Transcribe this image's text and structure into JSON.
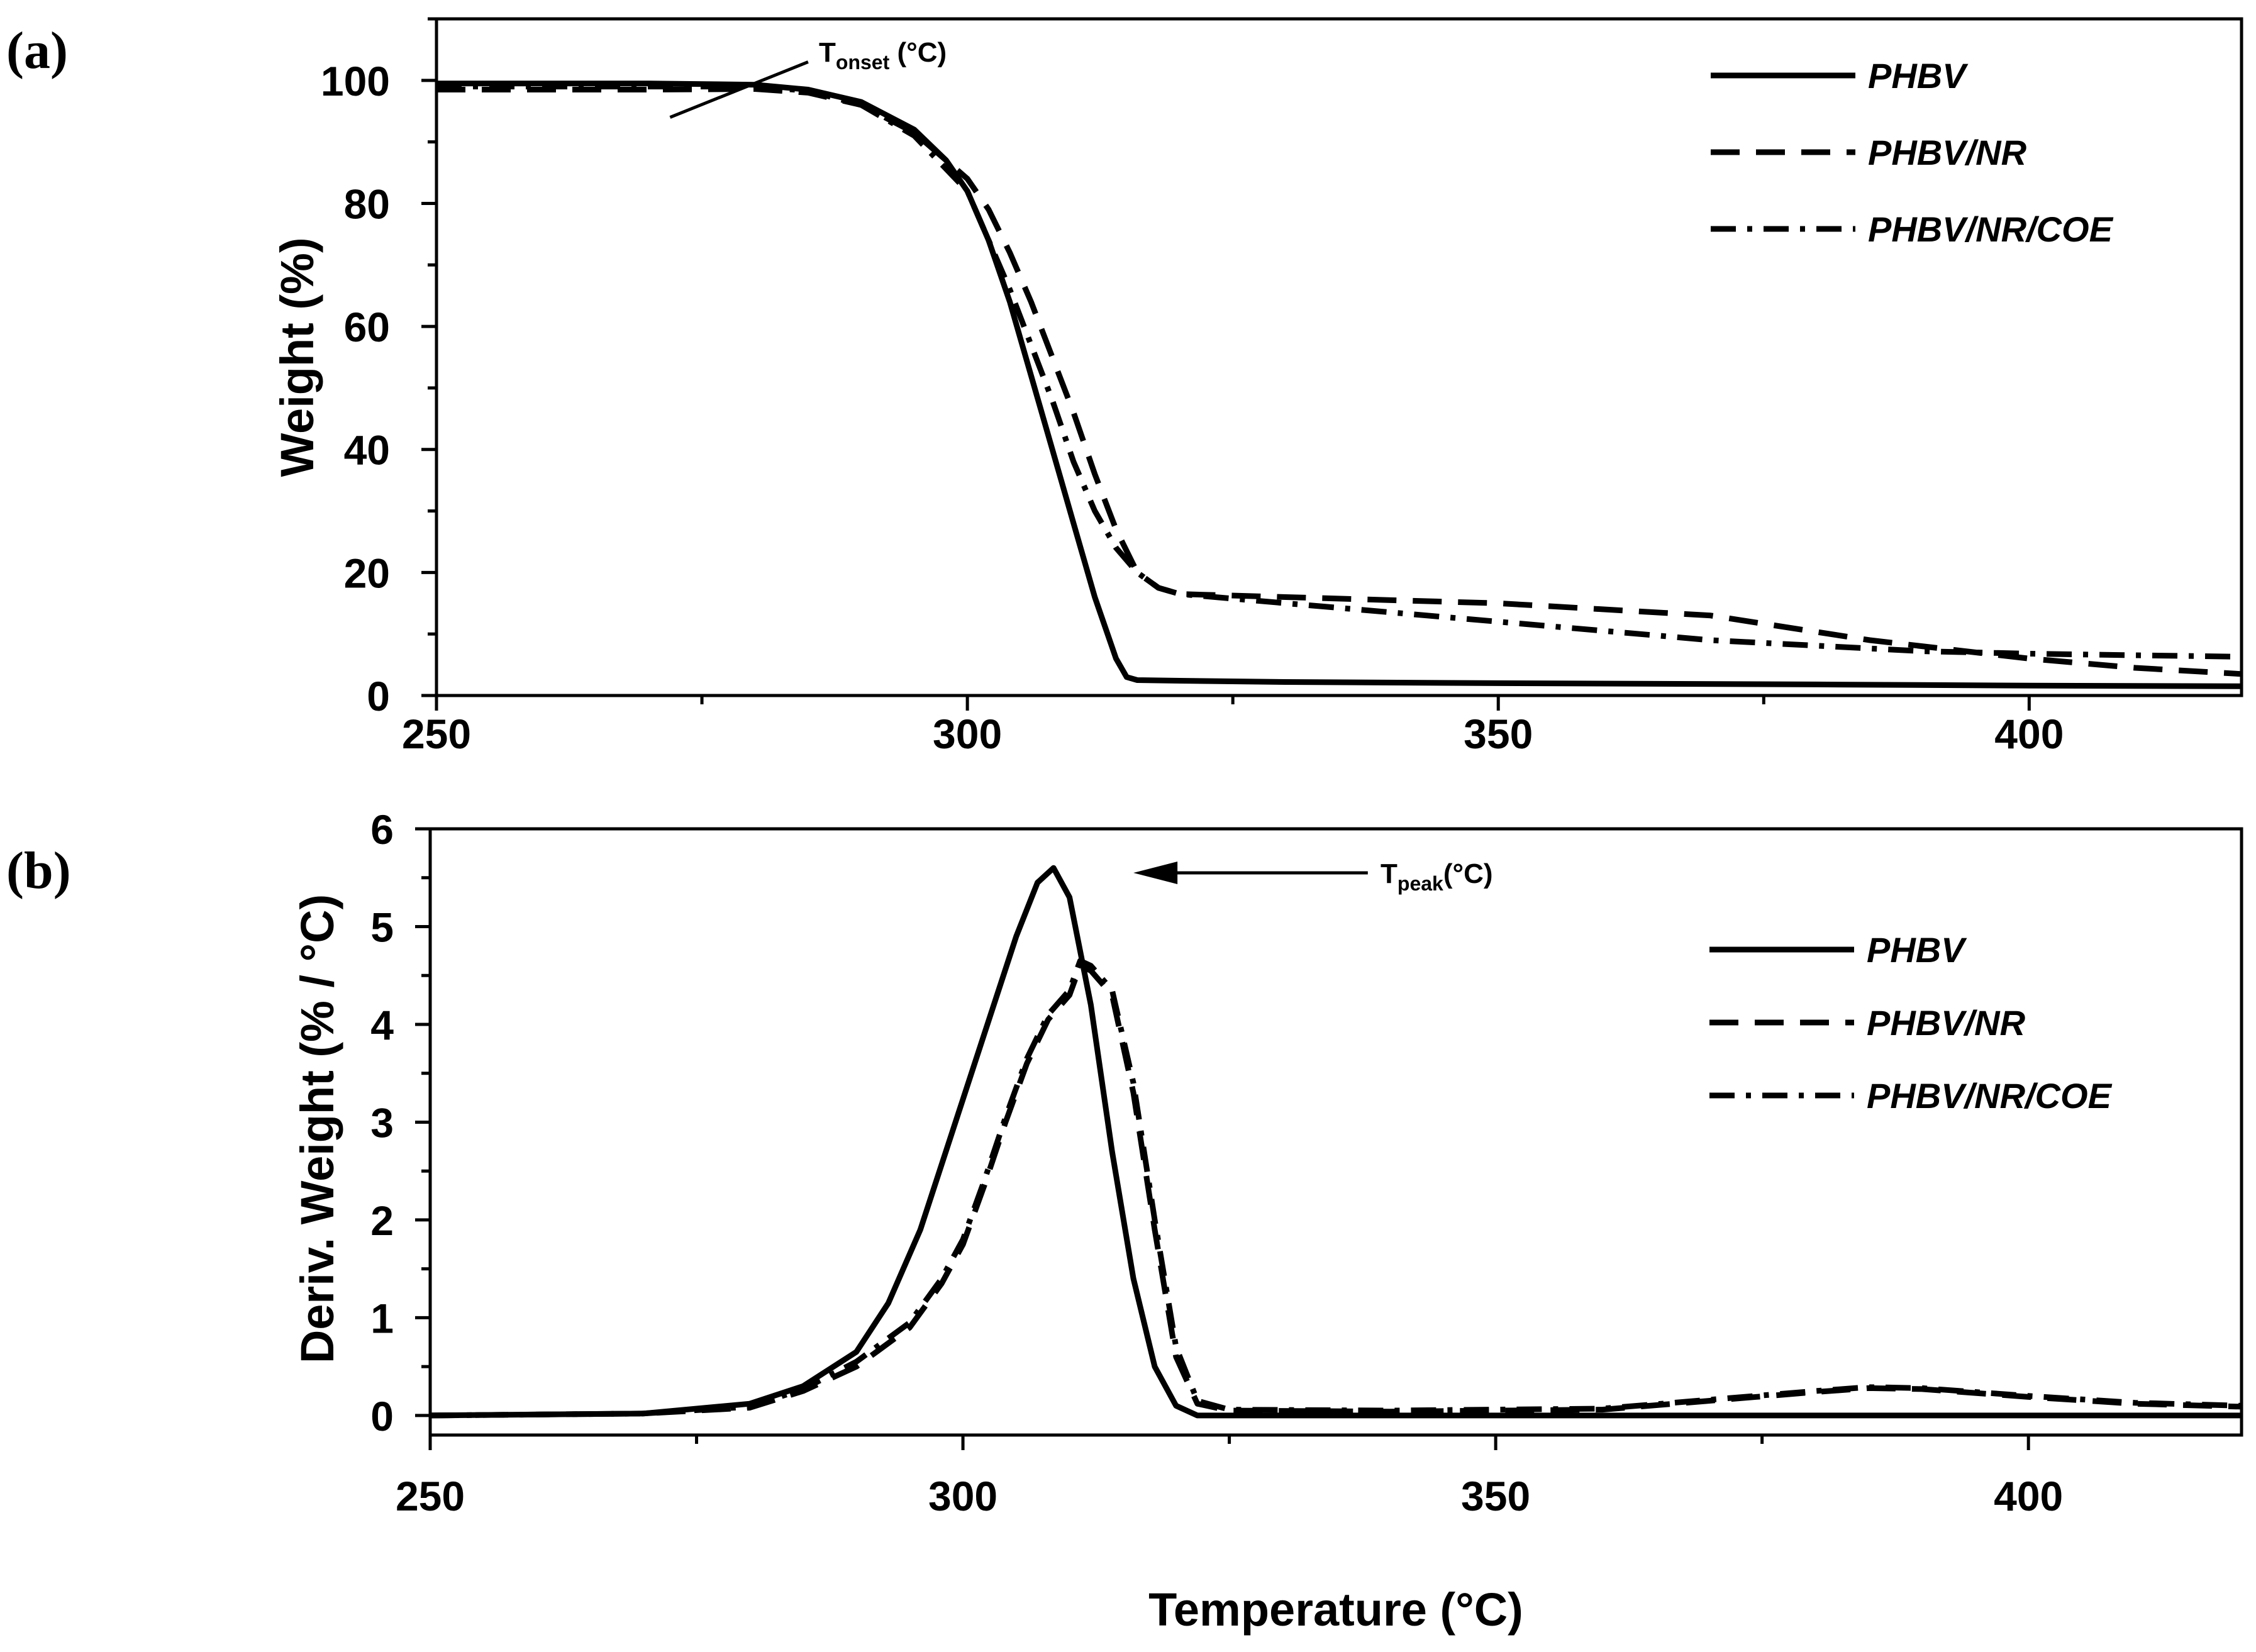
{
  "chart_data": [
    {
      "panel": "(a)",
      "type": "line",
      "xlabel": "",
      "ylabel": "Weight (%)",
      "xlim": [
        250,
        420
      ],
      "ylim": [
        0,
        110
      ],
      "xticks": [
        250,
        300,
        350,
        400
      ],
      "yticks": [
        0,
        20,
        40,
        60,
        80,
        100
      ],
      "legend_position": "top-right",
      "annotation": {
        "text": "T",
        "sub": "onset",
        "suffix": " (°C)",
        "line": [
          [
            272,
            94
          ],
          [
            285,
            103
          ]
        ]
      },
      "series": [
        {
          "name": "PHBV",
          "style": "solid",
          "x": [
            250,
            270,
            280,
            285,
            290,
            295,
            298,
            300,
            302,
            304,
            306,
            308,
            310,
            312,
            314,
            315,
            316,
            320,
            330,
            350,
            380,
            400,
            420
          ],
          "y": [
            99.5,
            99.5,
            99.3,
            98.5,
            96.5,
            92,
            87,
            82,
            74,
            64,
            52,
            40,
            28,
            16,
            6,
            3,
            2.5,
            2.4,
            2.2,
            2,
            1.8,
            1.6,
            1.5
          ]
        },
        {
          "name": "PHBV/NR",
          "style": "dashed",
          "x": [
            250,
            270,
            280,
            285,
            290,
            295,
            300,
            302,
            304,
            306,
            308,
            310,
            312,
            314,
            316,
            318,
            320,
            330,
            350,
            370,
            385,
            400,
            410,
            420
          ],
          "y": [
            98.5,
            98.5,
            98.6,
            98,
            96,
            91.5,
            84,
            79,
            72,
            64,
            55,
            46,
            36,
            27,
            20,
            17.5,
            16.5,
            16,
            15,
            13,
            9,
            6,
            4.5,
            3.5
          ]
        },
        {
          "name": "PHBV/NR/COE",
          "style": "dashdot",
          "x": [
            250,
            270,
            280,
            285,
            290,
            295,
            300,
            302,
            304,
            306,
            308,
            310,
            312,
            314,
            316,
            318,
            320,
            330,
            350,
            370,
            390,
            400,
            420
          ],
          "y": [
            99,
            99,
            99,
            98.3,
            96,
            91,
            82,
            74,
            66,
            57,
            48,
            38,
            30,
            24,
            20,
            17.5,
            16.5,
            15,
            12,
            9,
            7.2,
            6.8,
            6.3
          ]
        }
      ]
    },
    {
      "panel": "(b)",
      "type": "line",
      "xlabel": "Temperature (°C)",
      "ylabel": "Deriv. Weight (% / °C)",
      "xlim": [
        250,
        420
      ],
      "ylim": [
        -0.2,
        6
      ],
      "xticks": [
        250,
        300,
        350,
        400
      ],
      "yticks": [
        0,
        1,
        2,
        3,
        4,
        5,
        6
      ],
      "legend_position": "right",
      "annotation": {
        "text": "T",
        "sub": "peak",
        "suffix": "(°C)",
        "arrow_from": [
          338,
          5.55
        ],
        "arrow_to": [
          316,
          5.55
        ]
      },
      "series": [
        {
          "name": "PHBV",
          "style": "solid",
          "x": [
            250,
            270,
            280,
            285,
            290,
            293,
            296,
            299,
            302,
            305,
            307,
            308.5,
            310,
            312,
            314,
            316,
            318,
            320,
            322,
            324,
            340,
            380,
            420
          ],
          "y": [
            0,
            0.02,
            0.12,
            0.3,
            0.65,
            1.15,
            1.9,
            2.9,
            3.9,
            4.9,
            5.45,
            5.6,
            5.3,
            4.2,
            2.7,
            1.4,
            0.5,
            0.1,
            0,
            0,
            0,
            0,
            0
          ]
        },
        {
          "name": "PHBV/NR",
          "style": "dashed",
          "x": [
            250,
            270,
            280,
            285,
            290,
            295,
            298,
            300,
            302,
            304,
            306,
            308,
            310,
            311,
            312,
            314,
            316,
            318,
            320,
            322,
            325,
            340,
            360,
            370,
            380,
            385,
            390,
            400,
            410,
            420
          ],
          "y": [
            0,
            0.02,
            0.08,
            0.25,
            0.5,
            0.9,
            1.35,
            1.75,
            2.35,
            3,
            3.6,
            4.05,
            4.3,
            4.6,
            4.55,
            4.3,
            3.3,
            1.9,
            0.6,
            0.12,
            0.05,
            0.04,
            0.06,
            0.15,
            0.24,
            0.28,
            0.27,
            0.19,
            0.12,
            0.09
          ]
        },
        {
          "name": "PHBV/NR/COE",
          "style": "dashdot",
          "x": [
            250,
            270,
            280,
            285,
            290,
            295,
            298,
            300,
            302,
            304,
            306,
            308,
            310,
            311,
            312,
            314,
            316,
            318,
            320,
            322,
            325,
            340,
            360,
            370,
            380,
            385,
            390,
            400,
            410,
            420
          ],
          "y": [
            0,
            0.02,
            0.09,
            0.27,
            0.55,
            0.95,
            1.4,
            1.8,
            2.4,
            3.05,
            3.65,
            4.1,
            4.35,
            4.65,
            4.6,
            4.35,
            3.4,
            2.0,
            0.7,
            0.15,
            0.06,
            0.05,
            0.07,
            0.16,
            0.25,
            0.29,
            0.28,
            0.2,
            0.13,
            0.1
          ]
        }
      ]
    }
  ]
}
